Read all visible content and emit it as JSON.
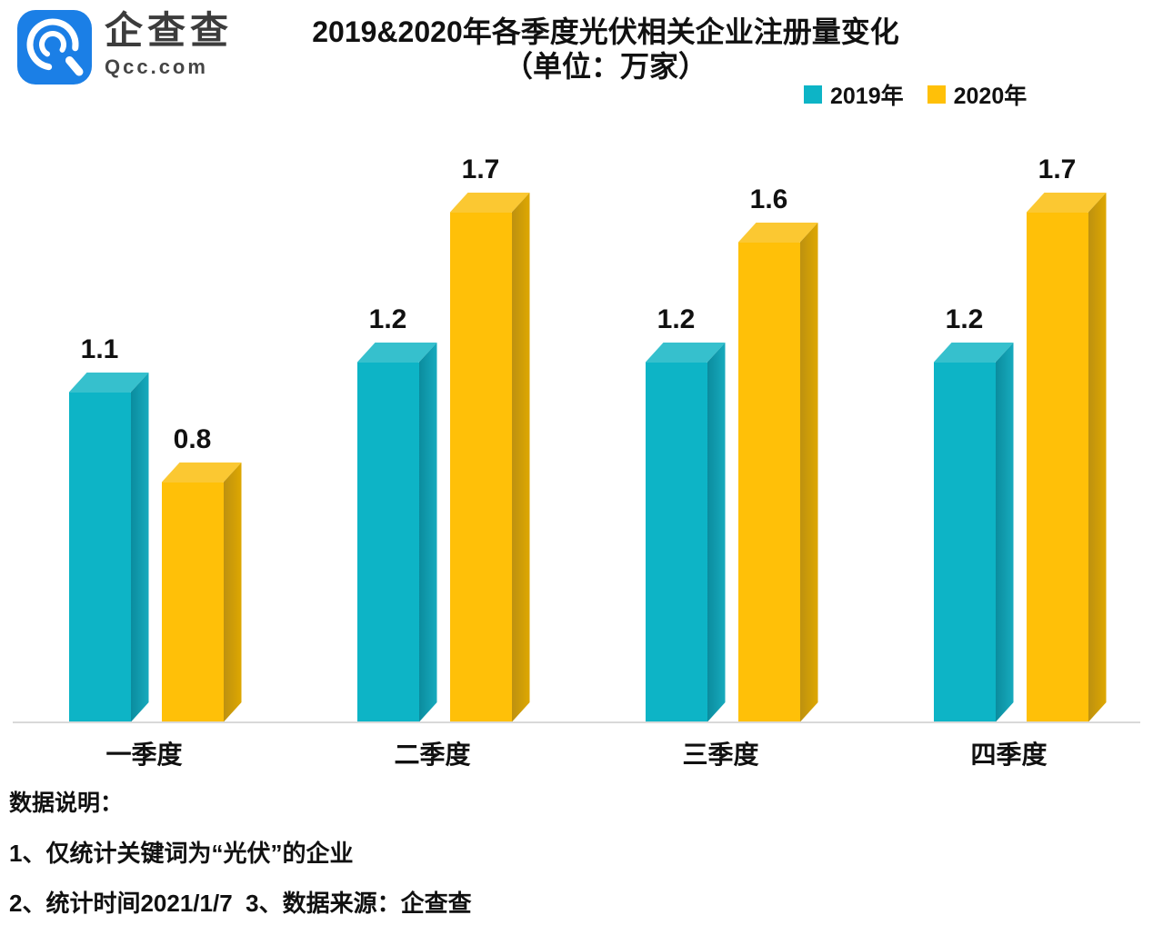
{
  "logo": {
    "name": "企查查",
    "domain": "Qcc.com",
    "brand_color": "#1B7FE6",
    "icon": "qcc-magnifier-icon"
  },
  "title": {
    "line1": "2019&2020年各季度光伏相关企业注册量变化",
    "line2": "（单位：万家）"
  },
  "legend": [
    {
      "label": "2019年",
      "color": "#0DB4C6"
    },
    {
      "label": "2020年",
      "color": "#FFC008"
    }
  ],
  "chart_data": {
    "type": "bar",
    "style": "3d-column",
    "title": "2019&2020年各季度光伏相关企业注册量变化",
    "subtitle": "（单位：万家）",
    "unit": "万家",
    "categories": [
      "一季度",
      "二季度",
      "三季度",
      "四季度"
    ],
    "series": [
      {
        "name": "2019年",
        "values": [
          1.1,
          1.2,
          1.2,
          1.2
        ],
        "face": {
          "front": "#0DB4C6",
          "top": "#36C0CD",
          "side1": "#0B8C9E",
          "side2": "#17ABBE"
        }
      },
      {
        "name": "2020年",
        "values": [
          0.8,
          1.7,
          1.6,
          1.7
        ],
        "face": {
          "front": "#FFC008",
          "top": "#FBC832",
          "side1": "#BD9110",
          "side2": "#DFA800"
        }
      }
    ],
    "ylim": [
      0,
      1.8
    ],
    "grid": false,
    "y_axis_visible": false,
    "legend_position": "top-right",
    "data_labels": true,
    "baseline_color": "#D9D9D9"
  },
  "footer": {
    "heading": "数据说明：",
    "note1": "1、仅统计关键词为“光伏”的企业",
    "note2": "2、统计时间2021/1/7  3、数据来源：企查查"
  }
}
